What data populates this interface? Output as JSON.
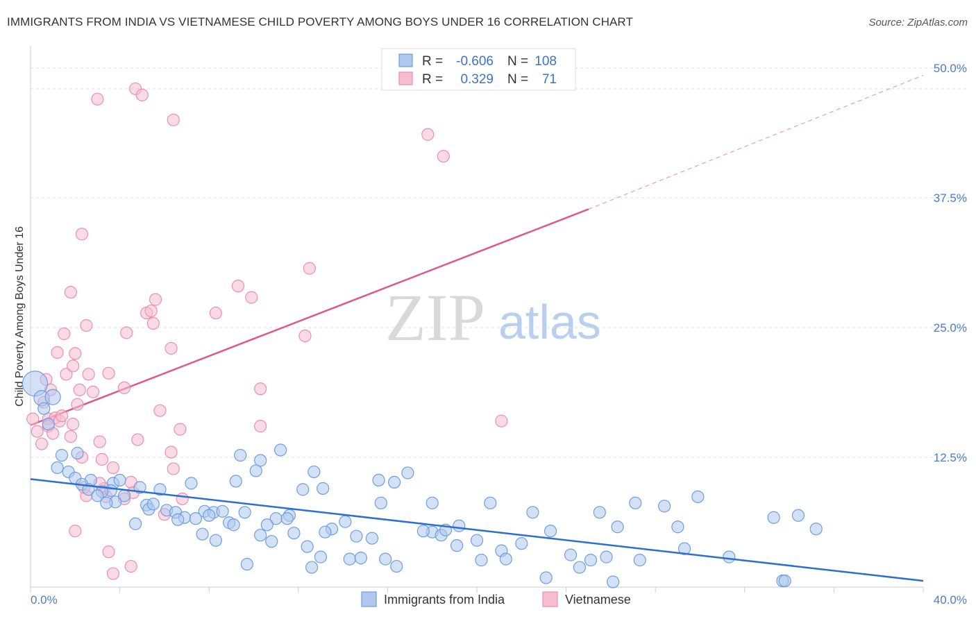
{
  "title": "IMMIGRANTS FROM INDIA VS VIETNAMESE CHILD POVERTY AMONG BOYS UNDER 16 CORRELATION CHART",
  "source": "Source: ZipAtlas.com",
  "watermark": {
    "zip": "ZIP",
    "atlas": "atlas"
  },
  "legend_top": {
    "rows": [
      {
        "r_label": "R =",
        "r_value": "-0.606",
        "n_label": "N =",
        "n_value": "108"
      },
      {
        "r_label": "R =",
        "r_value": "0.329",
        "n_label": "N =",
        "n_value": "71"
      }
    ]
  },
  "colors": {
    "india_fill": "#aec8f0",
    "india_stroke": "#6d9ee0",
    "india_line": "#2b6fd1",
    "viet_fill": "#f6bdd0",
    "viet_stroke": "#eb8fae",
    "viet_line": "#e0588a",
    "tick_text": "#4a7cc9",
    "grid": "#dddddd"
  },
  "chart_data": {
    "type": "scatter",
    "title": "IMMIGRANTS FROM INDIA VS VIETNAMESE CHILD POVERTY AMONG BOYS UNDER 16 CORRELATION CHART",
    "xlabel": "",
    "ylabel": "Child Poverty Among Boys Under 16",
    "xlim": [
      0,
      40
    ],
    "ylim": [
      0,
      50
    ],
    "x_tick_labels": [
      "0.0%",
      "40.0%"
    ],
    "y_ticks": [
      12.5,
      25.0,
      37.5,
      50.0
    ],
    "y_tick_labels": [
      "12.5%",
      "25.0%",
      "37.5%",
      "50.0%"
    ],
    "grid": true,
    "legend": [
      "Immigrants from India",
      "Vietnamese"
    ],
    "series": [
      {
        "name": "Immigrants from India",
        "r": -0.606,
        "n": 108,
        "trend": {
          "x0": 0,
          "y0": 10.4,
          "x1": 40,
          "y1": 0.6
        },
        "points": [
          [
            0.2,
            19.6
          ],
          [
            0.5,
            18.2
          ],
          [
            1.0,
            18.3
          ],
          [
            0.6,
            17.2
          ],
          [
            0.8,
            15.7
          ],
          [
            1.4,
            12.7
          ],
          [
            2.1,
            12.9
          ],
          [
            1.2,
            11.5
          ],
          [
            1.7,
            11.1
          ],
          [
            2.0,
            10.5
          ],
          [
            2.7,
            10.3
          ],
          [
            3.7,
            10.0
          ],
          [
            4.0,
            10.3
          ],
          [
            2.3,
            9.9
          ],
          [
            2.6,
            9.4
          ],
          [
            3.6,
            9.3
          ],
          [
            4.9,
            9.6
          ],
          [
            3.2,
            9.2
          ],
          [
            5.8,
            9.4
          ],
          [
            3.0,
            8.8
          ],
          [
            4.2,
            8.8
          ],
          [
            3.8,
            8.2
          ],
          [
            3.4,
            8.1
          ],
          [
            5.2,
            7.9
          ],
          [
            6.1,
            7.4
          ],
          [
            5.3,
            7.5
          ],
          [
            6.5,
            7.2
          ],
          [
            7.8,
            7.3
          ],
          [
            8.2,
            7.2
          ],
          [
            8.6,
            7.3
          ],
          [
            9.6,
            7.2
          ],
          [
            6.9,
            6.7
          ],
          [
            7.4,
            6.6
          ],
          [
            6.6,
            6.5
          ],
          [
            8.0,
            6.9
          ],
          [
            8.9,
            6.2
          ],
          [
            11.0,
            6.6
          ],
          [
            11.6,
            6.9
          ],
          [
            4.7,
            6.1
          ],
          [
            10.6,
            6.0
          ],
          [
            9.1,
            6.0
          ],
          [
            13.5,
            5.6
          ],
          [
            14.1,
            6.3
          ],
          [
            10.3,
            5.0
          ],
          [
            11.8,
            5.2
          ],
          [
            13.2,
            5.3
          ],
          [
            14.6,
            4.9
          ],
          [
            15.3,
            4.7
          ],
          [
            10.8,
            4.4
          ],
          [
            8.3,
            4.5
          ],
          [
            7.7,
            5.1
          ],
          [
            12.4,
            3.9
          ],
          [
            13.0,
            2.9
          ],
          [
            14.3,
            2.7
          ],
          [
            14.8,
            2.8
          ],
          [
            9.7,
            2.2
          ],
          [
            12.6,
            1.9
          ],
          [
            15.9,
            2.7
          ],
          [
            16.4,
            2.0
          ],
          [
            15.7,
            8.1
          ],
          [
            18.0,
            8.1
          ],
          [
            18.0,
            5.3
          ],
          [
            18.4,
            5.0
          ],
          [
            18.6,
            5.5
          ],
          [
            17.6,
            5.4
          ],
          [
            20.6,
            8.1
          ],
          [
            19.1,
            4.0
          ],
          [
            20.0,
            4.5
          ],
          [
            19.2,
            5.9
          ],
          [
            22.5,
            7.2
          ],
          [
            23.3,
            5.4
          ],
          [
            24.2,
            3.1
          ],
          [
            24.6,
            1.9
          ],
          [
            23.1,
            0.9
          ],
          [
            22.0,
            4.2
          ],
          [
            21.1,
            3.5
          ],
          [
            20.2,
            2.6
          ],
          [
            21.3,
            2.7
          ],
          [
            26.3,
            5.8
          ],
          [
            25.5,
            7.2
          ],
          [
            25.1,
            2.6
          ],
          [
            25.8,
            2.9
          ],
          [
            27.3,
            2.6
          ],
          [
            27.1,
            8.1
          ],
          [
            28.4,
            7.8
          ],
          [
            29.0,
            5.8
          ],
          [
            29.3,
            3.7
          ],
          [
            29.9,
            8.7
          ],
          [
            31.3,
            2.9
          ],
          [
            33.3,
            6.7
          ],
          [
            34.4,
            6.9
          ],
          [
            35.2,
            5.6
          ],
          [
            33.7,
            0.6
          ],
          [
            33.8,
            0.6
          ],
          [
            26.1,
            0.5
          ],
          [
            10.3,
            12.2
          ],
          [
            11.2,
            13.2
          ],
          [
            12.7,
            11.1
          ],
          [
            9.4,
            12.7
          ],
          [
            10.1,
            11.2
          ],
          [
            13.1,
            9.5
          ],
          [
            12.2,
            9.4
          ],
          [
            15.6,
            10.3
          ],
          [
            16.3,
            10.1
          ],
          [
            16.9,
            11.0
          ],
          [
            9.2,
            10.2
          ],
          [
            11.5,
            6.6
          ],
          [
            7.2,
            10.0
          ],
          [
            5.5,
            8.0
          ]
        ]
      },
      {
        "name": "Vietnamese",
        "r": 0.329,
        "n": 71,
        "trend": {
          "x0": 0,
          "y0": 15.6,
          "x1": 25,
          "y1": 36.4,
          "dashed_to_x": 40,
          "dashed_to_y": 49.3
        },
        "points": [
          [
            0.1,
            16.2
          ],
          [
            0.3,
            15.0
          ],
          [
            0.5,
            13.8
          ],
          [
            0.6,
            17.8
          ],
          [
            0.7,
            20.0
          ],
          [
            0.8,
            16.2
          ],
          [
            0.8,
            15.5
          ],
          [
            1.1,
            16.3
          ],
          [
            1.3,
            16.0
          ],
          [
            0.9,
            19.0
          ],
          [
            1.4,
            16.5
          ],
          [
            1.0,
            14.8
          ],
          [
            1.2,
            22.6
          ],
          [
            1.5,
            24.4
          ],
          [
            1.6,
            20.5
          ],
          [
            1.9,
            21.3
          ],
          [
            1.9,
            15.7
          ],
          [
            1.8,
            14.5
          ],
          [
            2.0,
            22.5
          ],
          [
            2.1,
            17.6
          ],
          [
            2.2,
            19.0
          ],
          [
            2.5,
            25.2
          ],
          [
            2.6,
            20.5
          ],
          [
            2.8,
            18.8
          ],
          [
            2.3,
            12.5
          ],
          [
            2.5,
            8.8
          ],
          [
            2.0,
            5.4
          ],
          [
            1.8,
            28.4
          ],
          [
            2.3,
            34.0
          ],
          [
            3.1,
            14.0
          ],
          [
            3.2,
            12.3
          ],
          [
            3.3,
            9.5
          ],
          [
            3.4,
            8.7
          ],
          [
            3.5,
            20.6
          ],
          [
            3.7,
            11.5
          ],
          [
            3.5,
            3.4
          ],
          [
            3.7,
            1.3
          ],
          [
            4.2,
            19.2
          ],
          [
            4.3,
            24.5
          ],
          [
            4.5,
            10.1
          ],
          [
            4.6,
            9.1
          ],
          [
            4.8,
            14.2
          ],
          [
            5.2,
            26.4
          ],
          [
            5.4,
            26.6
          ],
          [
            5.5,
            25.4
          ],
          [
            5.6,
            27.7
          ],
          [
            5.8,
            17.0
          ],
          [
            6.3,
            23.0
          ],
          [
            6.3,
            13.0
          ],
          [
            6.4,
            11.4
          ],
          [
            6.0,
            7.0
          ],
          [
            6.7,
            15.2
          ],
          [
            6.8,
            8.5
          ],
          [
            4.5,
            2.0
          ],
          [
            3.0,
            47.0
          ],
          [
            4.7,
            48.0
          ],
          [
            5.0,
            47.4
          ],
          [
            6.4,
            45.0
          ],
          [
            8.3,
            26.4
          ],
          [
            9.3,
            29.0
          ],
          [
            9.9,
            27.9
          ],
          [
            10.3,
            19.1
          ],
          [
            10.3,
            15.5
          ],
          [
            12.5,
            30.7
          ],
          [
            12.3,
            24.2
          ],
          [
            17.8,
            43.6
          ],
          [
            18.5,
            41.5
          ],
          [
            21.1,
            16.0
          ],
          [
            4.2,
            8.5
          ],
          [
            3.1,
            10.0
          ],
          [
            2.4,
            9.6
          ]
        ]
      }
    ]
  },
  "legend_bottom": {
    "items": [
      "Immigrants from India",
      "Vietnamese"
    ]
  }
}
